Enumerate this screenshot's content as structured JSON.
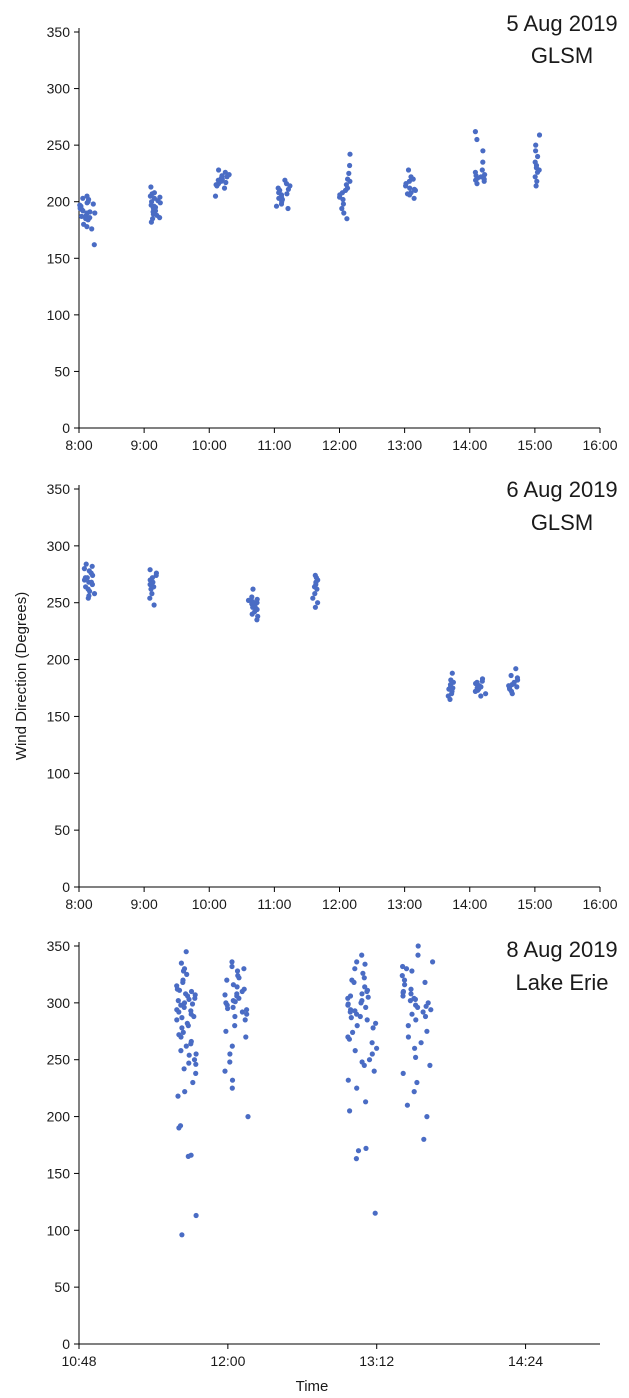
{
  "figure": {
    "ylabel": "Wind Direction (Degrees)",
    "xlabel": "Time",
    "point_color": "#4a6cc4"
  },
  "chart_data": [
    {
      "type": "scatter",
      "title": [
        "5 Aug 2019",
        "GLSM"
      ],
      "xlabel": "",
      "ylabel": "",
      "xlim": [
        "8:00",
        "16:00"
      ],
      "ylim": [
        0,
        350
      ],
      "x_ticks": [
        "8:00",
        "9:00",
        "10:00",
        "11:00",
        "12:00",
        "13:00",
        "14:00",
        "15:00",
        "16:00"
      ],
      "y_ticks": [
        0,
        50,
        100,
        150,
        200,
        250,
        300,
        350
      ],
      "grid": false,
      "clusters": [
        {
          "start": "8:00",
          "end": "8:15",
          "values": [
            205,
            200,
            196,
            192,
            188,
            190,
            195,
            198,
            202,
            185,
            180,
            176,
            186,
            194,
            199,
            203,
            191,
            187,
            184,
            178,
            193,
            197,
            162,
            190
          ]
        },
        {
          "start": "9:05",
          "end": "9:15",
          "values": [
            213,
            208,
            204,
            200,
            196,
            192,
            188,
            185,
            182,
            199,
            203,
            207,
            195,
            191,
            197,
            201,
            194,
            189,
            205,
            186
          ]
        },
        {
          "start": "10:05",
          "end": "10:20",
          "values": [
            228,
            224,
            220,
            216,
            212,
            218,
            222,
            226,
            214,
            219,
            223,
            215,
            205,
            221,
            217
          ]
        },
        {
          "start": "11:00",
          "end": "11:15",
          "values": [
            219,
            214,
            210,
            206,
            202,
            198,
            194,
            200,
            204,
            208,
            212,
            216,
            196,
            203,
            207,
            211
          ]
        },
        {
          "start": "12:00",
          "end": "12:10",
          "values": [
            242,
            232,
            225,
            220,
            215,
            210,
            206,
            202,
            198,
            194,
            190,
            185,
            212,
            208,
            218,
            204
          ]
        },
        {
          "start": "13:00",
          "end": "13:10",
          "values": [
            228,
            222,
            218,
            214,
            210,
            206,
            203,
            208,
            212,
            216,
            220,
            211,
            207
          ]
        },
        {
          "start": "14:05",
          "end": "14:15",
          "values": [
            262,
            255,
            245,
            235,
            228,
            224,
            221,
            218,
            216,
            219,
            223,
            226,
            222,
            220
          ]
        },
        {
          "start": "15:00",
          "end": "15:05",
          "values": [
            259,
            250,
            240,
            235,
            230,
            226,
            222,
            218,
            214,
            232,
            228,
            245
          ]
        }
      ]
    },
    {
      "type": "scatter",
      "title": [
        "6 Aug 2019",
        "GLSM"
      ],
      "xlabel": "",
      "ylabel": "Wind Direction (Degrees)",
      "xlim": [
        "8:00",
        "16:00"
      ],
      "ylim": [
        0,
        350
      ],
      "x_ticks": [
        "8:00",
        "9:00",
        "10:00",
        "11:00",
        "12:00",
        "13:00",
        "14:00",
        "15:00",
        "16:00"
      ],
      "y_ticks": [
        0,
        50,
        100,
        150,
        200,
        250,
        300,
        350
      ],
      "grid": false,
      "clusters": [
        {
          "start": "8:05",
          "end": "8:15",
          "values": [
            284,
            280,
            276,
            272,
            268,
            264,
            260,
            256,
            270,
            274,
            278,
            266,
            262,
            258,
            282,
            268,
            272,
            254
          ]
        },
        {
          "start": "9:05",
          "end": "9:12",
          "values": [
            279,
            274,
            270,
            266,
            262,
            258,
            254,
            248,
            268,
            272,
            264,
            276
          ]
        },
        {
          "start": "10:35",
          "end": "10:45",
          "values": [
            262,
            255,
            252,
            250,
            248,
            246,
            244,
            242,
            240,
            238,
            235,
            249,
            251,
            247,
            245,
            253
          ]
        },
        {
          "start": "11:35",
          "end": "11:40",
          "values": [
            274,
            270,
            266,
            262,
            258,
            254,
            250,
            246,
            268,
            264,
            272
          ]
        },
        {
          "start": "13:40",
          "end": "13:45",
          "values": [
            188,
            182,
            178,
            175,
            172,
            168,
            165,
            176,
            180,
            170,
            174
          ]
        },
        {
          "start": "14:05",
          "end": "14:15",
          "values": [
            183,
            180,
            178,
            176,
            174,
            172,
            170,
            168,
            179,
            177,
            175,
            181,
            173
          ]
        },
        {
          "start": "14:35",
          "end": "14:45",
          "values": [
            192,
            186,
            182,
            180,
            178,
            176,
            174,
            172,
            170,
            184,
            179,
            177,
            175
          ]
        }
      ]
    },
    {
      "type": "scatter",
      "title": [
        "8 Aug 2019",
        "Lake Erie"
      ],
      "xlabel": "Time",
      "ylabel": "",
      "xlim": [
        "10:48",
        "15:00"
      ],
      "ylim": [
        0,
        350
      ],
      "x_ticks": [
        "10:48",
        "12:00",
        "13:12",
        "14:24"
      ],
      "y_ticks": [
        0,
        50,
        100,
        150,
        200,
        250,
        300,
        350
      ],
      "grid": false,
      "clusters": [
        {
          "start": "11:35",
          "end": "11:45",
          "values": [
            345,
            335,
            330,
            325,
            320,
            315,
            312,
            310,
            308,
            306,
            304,
            302,
            300,
            298,
            296,
            294,
            292,
            290,
            288,
            285,
            282,
            278,
            274,
            270,
            266,
            262,
            258,
            254,
            250,
            246,
            242,
            238,
            230,
            222,
            218,
            192,
            190,
            166,
            165,
            113,
            96,
            328,
            318,
            311,
            307,
            303,
            299,
            293,
            287,
            280,
            272,
            264,
            255,
            247
          ]
        },
        {
          "start": "11:58",
          "end": "12:10",
          "values": [
            336,
            332,
            328,
            324,
            320,
            316,
            312,
            310,
            308,
            306,
            304,
            302,
            300,
            298,
            296,
            294,
            292,
            290,
            288,
            285,
            280,
            275,
            270,
            262,
            255,
            248,
            240,
            232,
            225,
            200,
            330,
            322,
            314,
            307,
            301,
            295
          ]
        },
        {
          "start": "12:58",
          "end": "13:12",
          "values": [
            342,
            336,
            330,
            326,
            322,
            318,
            314,
            310,
            308,
            306,
            304,
            302,
            300,
            298,
            296,
            294,
            292,
            290,
            288,
            285,
            282,
            278,
            274,
            270,
            265,
            260,
            255,
            250,
            245,
            240,
            232,
            225,
            213,
            205,
            172,
            170,
            163,
            115,
            334,
            320,
            311,
            305,
            299,
            293,
            287,
            280,
            268,
            258,
            248
          ]
        },
        {
          "start": "13:23",
          "end": "13:40",
          "values": [
            350,
            342,
            336,
            332,
            328,
            324,
            320,
            316,
            312,
            310,
            308,
            306,
            304,
            302,
            300,
            298,
            296,
            294,
            292,
            290,
            288,
            285,
            280,
            275,
            270,
            265,
            260,
            252,
            245,
            238,
            230,
            222,
            210,
            200,
            180,
            330,
            318,
            309,
            303,
            297
          ]
        }
      ]
    }
  ]
}
